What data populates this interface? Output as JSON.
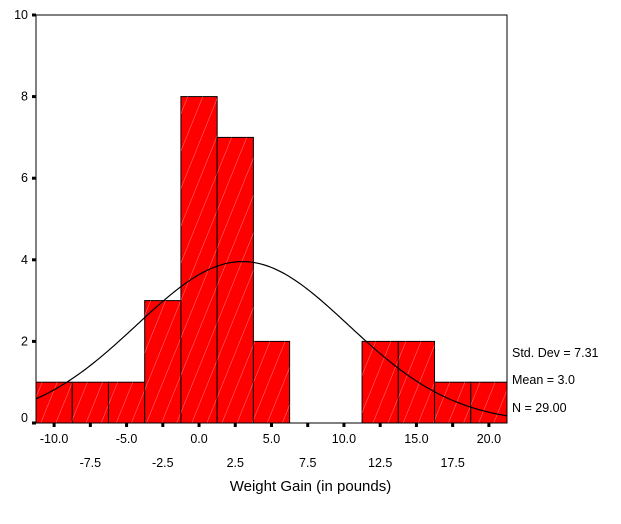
{
  "chart_data": {
    "type": "bar",
    "subtype": "histogram",
    "xlabel": "Weight Gain (in pounds)",
    "ylabel": "",
    "bin_width": 2.5,
    "bin_centers": [
      -10.0,
      -7.5,
      -5.0,
      -2.5,
      0.0,
      2.5,
      5.0,
      7.5,
      10.0,
      12.5,
      15.0,
      17.5,
      20.0
    ],
    "counts": [
      1,
      1,
      1,
      3,
      8,
      7,
      2,
      0,
      0,
      2,
      2,
      1,
      1
    ],
    "x_tick_labels_upper": [
      "-10.0",
      "-5.0",
      "0.0",
      "5.0",
      "10.0",
      "15.0",
      "20.0"
    ],
    "x_tick_labels_lower": [
      "-7.5",
      "-2.5",
      "2.5",
      "7.5",
      "12.5",
      "17.5"
    ],
    "ylim": [
      0,
      10
    ],
    "y_ticks": [
      0,
      2,
      4,
      6,
      8,
      10
    ],
    "bar_color": "#ff0000",
    "normal_curve": {
      "mean": 3.0,
      "std_dev": 7.31,
      "n": 29
    },
    "stats_text": {
      "std_dev": "Std. Dev = 7.31",
      "mean": "Mean = 3.0",
      "n": "N = 29.00"
    }
  }
}
